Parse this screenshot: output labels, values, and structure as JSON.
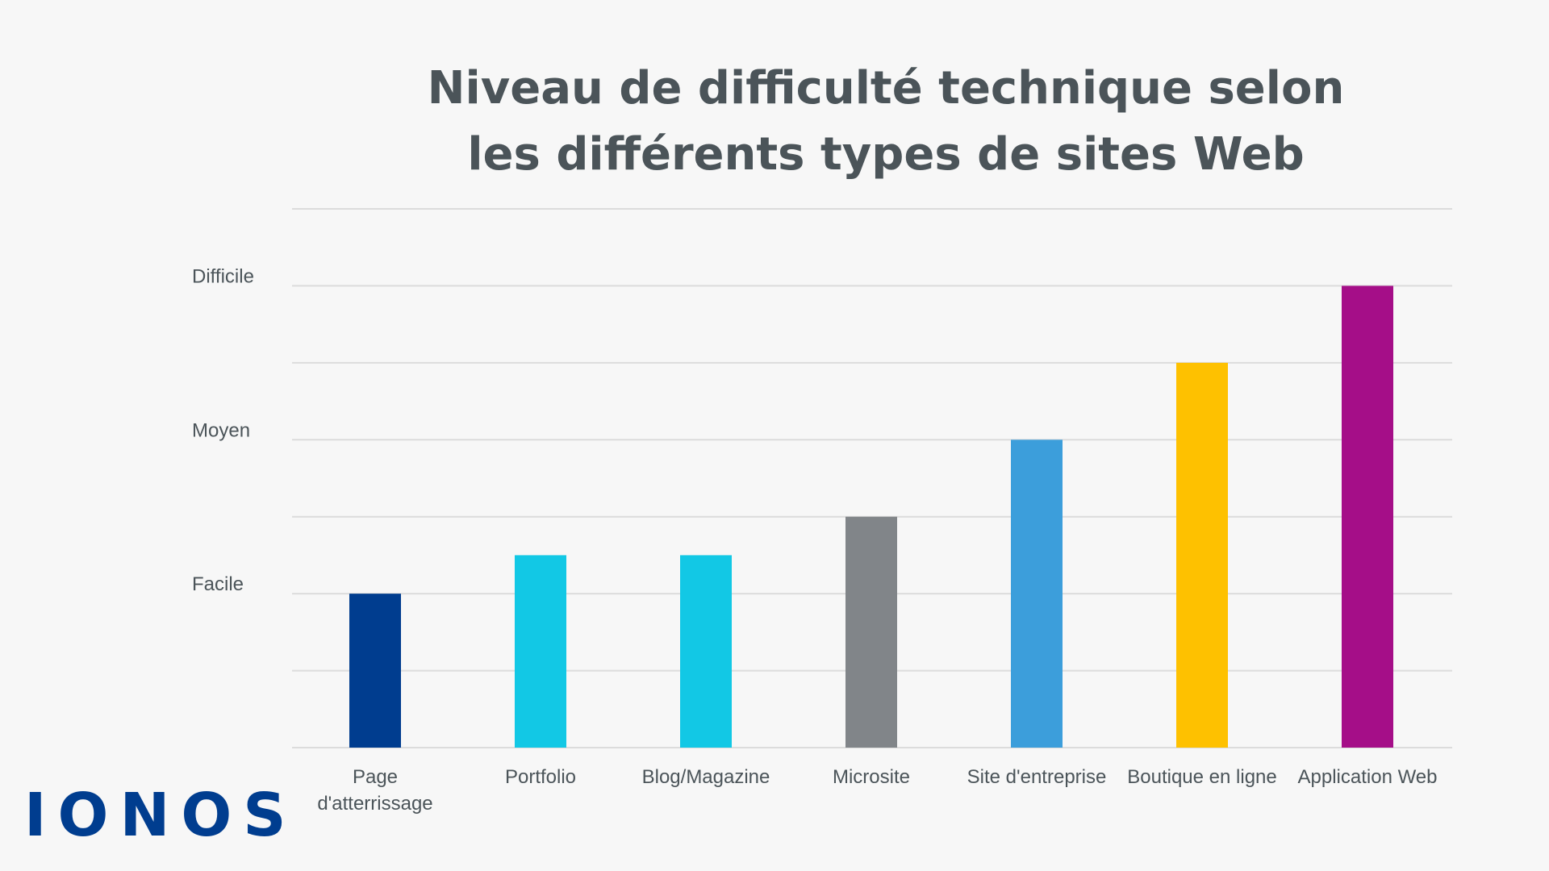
{
  "brand": {
    "logo_text": "IONOS",
    "logo_color": "#003d8f"
  },
  "chart_data": {
    "type": "bar",
    "title": "Niveau de difficulté technique selon les différents types de sites Web",
    "title_lines": [
      "Niveau de difficulté technique selon",
      "les différents types de sites Web"
    ],
    "xlabel": "",
    "ylabel": "",
    "ylim": [
      0,
      7
    ],
    "grid": true,
    "yticks": [
      {
        "value": 2,
        "label": "Facile"
      },
      {
        "value": 4,
        "label": "Moyen"
      },
      {
        "value": 6,
        "label": "Difficile"
      }
    ],
    "categories": [
      "Page d'atterrissage",
      "Portfolio",
      "Blog/Magazine",
      "Microsite",
      "Site d'entreprise",
      "Boutique en ligne",
      "Application Web"
    ],
    "category_lines": [
      [
        "Page",
        "d'atterrissage"
      ],
      [
        "Portfolio"
      ],
      [
        "Blog/Magazine"
      ],
      [
        "Microsite"
      ],
      [
        "Site d'entreprise"
      ],
      [
        "Boutique en ligne"
      ],
      [
        "Application Web"
      ]
    ],
    "values": [
      2,
      2.5,
      2.5,
      3,
      4,
      5,
      6
    ],
    "colors": [
      "#003d8f",
      "#12c8e5",
      "#12c8e5",
      "#818589",
      "#3c9edb",
      "#fec100",
      "#a50e88"
    ]
  }
}
